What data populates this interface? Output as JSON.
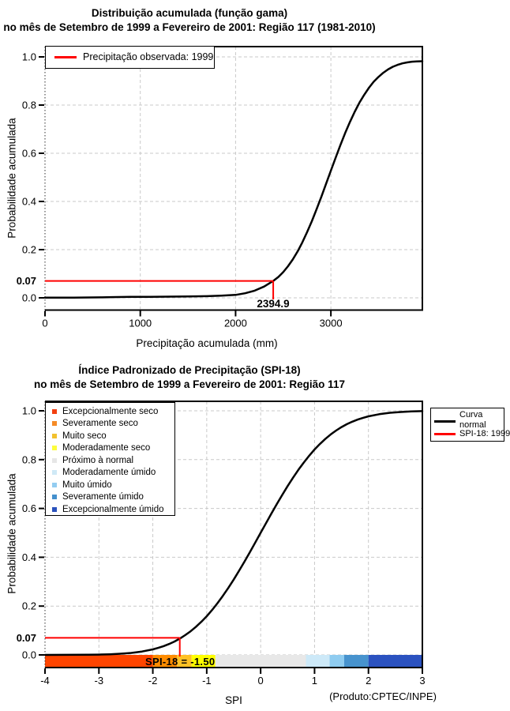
{
  "chart_data": [
    {
      "type": "line",
      "title": "Distribuição acumulada (função gama)",
      "subtitle": "no mês de Setembro de 1999 a Fevereiro de 2001: Região 117 (1981-2010)",
      "xlabel": "Precipitação acumulada (mm)",
      "ylabel": "Probabilidade acumulada",
      "xlim": [
        0,
        3960
      ],
      "ylim": [
        -0.051,
        1.043
      ],
      "xticks": [
        0,
        1000,
        2000,
        3000
      ],
      "xtick_labels": [
        "0",
        "1000",
        "2000",
        "3000"
      ],
      "yticks": [
        0.0,
        0.2,
        0.4,
        0.6,
        0.8,
        1.0
      ],
      "ytick_labels": [
        "0.0",
        "0.2",
        "0.4",
        "0.6",
        "0.8",
        "1.0"
      ],
      "highlight_ytick": {
        "value": 0.07,
        "label": "0.07",
        "color": "#4d4d4d"
      },
      "grid": true,
      "legend": {
        "position": "top-left",
        "items": [
          {
            "label": "Precipitação observada: 1999",
            "color": "#ff0000"
          }
        ]
      },
      "annotation": {
        "x": 2394.9,
        "y": 0.07,
        "label": "2394.9",
        "color": "#ff0000"
      },
      "series": [
        {
          "name": "gamma-cdf",
          "color": "#000000",
          "points": [
            [
              0,
              0.001
            ],
            [
              300,
              0.001
            ],
            [
              600,
              0.002
            ],
            [
              700,
              0.003
            ],
            [
              900,
              0.004
            ],
            [
              1100,
              0.004
            ],
            [
              1300,
              0.005
            ],
            [
              1500,
              0.006
            ],
            [
              1700,
              0.007
            ],
            [
              1850,
              0.009
            ],
            [
              2000,
              0.012
            ],
            [
              2100,
              0.019
            ],
            [
              2200,
              0.03
            ],
            [
              2300,
              0.047
            ],
            [
              2394.9,
              0.07
            ],
            [
              2450,
              0.087
            ],
            [
              2500,
              0.107
            ],
            [
              2550,
              0.131
            ],
            [
              2600,
              0.159
            ],
            [
              2650,
              0.192
            ],
            [
              2700,
              0.23
            ],
            [
              2750,
              0.272
            ],
            [
              2800,
              0.318
            ],
            [
              2850,
              0.368
            ],
            [
              2900,
              0.42
            ],
            [
              2950,
              0.474
            ],
            [
              3000,
              0.528
            ],
            [
              3050,
              0.582
            ],
            [
              3100,
              0.634
            ],
            [
              3150,
              0.684
            ],
            [
              3200,
              0.73
            ],
            [
              3250,
              0.772
            ],
            [
              3300,
              0.81
            ],
            [
              3350,
              0.843
            ],
            [
              3400,
              0.872
            ],
            [
              3450,
              0.897
            ],
            [
              3500,
              0.917
            ],
            [
              3550,
              0.934
            ],
            [
              3600,
              0.948
            ],
            [
              3650,
              0.959
            ],
            [
              3700,
              0.967
            ],
            [
              3750,
              0.973
            ],
            [
              3800,
              0.977
            ],
            [
              3850,
              0.98
            ],
            [
              3900,
              0.981
            ],
            [
              3960,
              0.982
            ]
          ]
        }
      ]
    },
    {
      "type": "line",
      "title": "Índice Padronizado de Precipitação (SPI-18)",
      "subtitle": "no mês de Setembro de 1999 a Fevereiro de 2001: Região 117",
      "xlabel": "SPI",
      "ylabel": "Probabilidade acumulada",
      "xlim": [
        -4,
        3
      ],
      "ylim": [
        -0.051,
        1.043
      ],
      "xticks": [
        -4,
        -3,
        -2,
        -1,
        0,
        1,
        2,
        3
      ],
      "xtick_labels": [
        "-4",
        "-3",
        "-2",
        "-1",
        "0",
        "1",
        "2",
        "3"
      ],
      "yticks": [
        0.0,
        0.2,
        0.4,
        0.6,
        0.8,
        1.0
      ],
      "ytick_labels": [
        "0.0",
        "0.2",
        "0.4",
        "0.6",
        "0.8",
        "1.0"
      ],
      "highlight_ytick": {
        "value": 0.07,
        "label": "0.07",
        "color": "#4d4d4d"
      },
      "grid": true,
      "categories": [
        {
          "label": "Excepcionalmente seco",
          "color": "#f23f10"
        },
        {
          "label": "Severamente seco",
          "color": "#f58b26"
        },
        {
          "label": "Muito seco",
          "color": "#f2c12e"
        },
        {
          "label": "Moderadamente seco",
          "color": "#fdfd3c"
        },
        {
          "label": "Próximo à normal",
          "color": "#e6e6e6"
        },
        {
          "label": "Moderadamente úmido",
          "color": "#cfe9f6"
        },
        {
          "label": "Muito úmido",
          "color": "#93cdf1"
        },
        {
          "label": "Severamente úmido",
          "color": "#4590cd"
        },
        {
          "label": "Excepcionalmente úmido",
          "color": "#2a52bd"
        }
      ],
      "colorbar": [
        {
          "from": -4,
          "to": -2,
          "color": "#ff4500"
        },
        {
          "from": -2,
          "to": -1.55,
          "color": "#ff8c00"
        },
        {
          "from": -1.55,
          "to": -1.28,
          "color": "#ffc125"
        },
        {
          "from": -1.28,
          "to": -0.84,
          "color": "#ffff00"
        },
        {
          "from": -0.84,
          "to": 0.84,
          "color": "#e8e8e8"
        },
        {
          "from": 0.84,
          "to": 1.28,
          "color": "#cde9f8"
        },
        {
          "from": 1.28,
          "to": 1.55,
          "color": "#8fccf0"
        },
        {
          "from": 1.55,
          "to": 2,
          "color": "#4793ce"
        },
        {
          "from": 2,
          "to": 3,
          "color": "#2b52c0"
        }
      ],
      "line_legend": {
        "position": "top-right",
        "items": [
          {
            "label_line1": "Curva",
            "label_line2": "normal",
            "color": "#000000"
          },
          {
            "label": "SPI-18: 1999",
            "color": "#ff0000"
          }
        ]
      },
      "annotation": {
        "x": -1.5,
        "y": 0.07,
        "label": "SPI-18 = -1.50",
        "color": "#ff0000"
      },
      "credit": "(Produto:CPTEC/INPE)",
      "series": [
        {
          "name": "normal-cdf",
          "color": "#000000",
          "points": [
            [
              -4,
              0.0001
            ],
            [
              -3.6,
              0.0003
            ],
            [
              -3.2,
              0.0007
            ],
            [
              -3,
              0.0013
            ],
            [
              -2.8,
              0.0026
            ],
            [
              -2.6,
              0.0047
            ],
            [
              -2.4,
              0.0082
            ],
            [
              -2.2,
              0.0139
            ],
            [
              -2,
              0.0228
            ],
            [
              -1.9,
              0.0287
            ],
            [
              -1.8,
              0.0359
            ],
            [
              -1.7,
              0.0446
            ],
            [
              -1.6,
              0.0548
            ],
            [
              -1.5,
              0.0668
            ],
            [
              -1.4,
              0.0808
            ],
            [
              -1.3,
              0.0968
            ],
            [
              -1.2,
              0.1151
            ],
            [
              -1.1,
              0.1357
            ],
            [
              -1,
              0.1587
            ],
            [
              -0.9,
              0.1841
            ],
            [
              -0.8,
              0.2119
            ],
            [
              -0.7,
              0.242
            ],
            [
              -0.6,
              0.2743
            ],
            [
              -0.5,
              0.3085
            ],
            [
              -0.4,
              0.3446
            ],
            [
              -0.3,
              0.3821
            ],
            [
              -0.2,
              0.4207
            ],
            [
              -0.1,
              0.4602
            ],
            [
              0,
              0.5
            ],
            [
              0.1,
              0.5398
            ],
            [
              0.2,
              0.5793
            ],
            [
              0.3,
              0.6179
            ],
            [
              0.4,
              0.6554
            ],
            [
              0.5,
              0.6915
            ],
            [
              0.6,
              0.7257
            ],
            [
              0.7,
              0.758
            ],
            [
              0.8,
              0.7881
            ],
            [
              0.9,
              0.8159
            ],
            [
              1,
              0.8413
            ],
            [
              1.1,
              0.8643
            ],
            [
              1.2,
              0.8849
            ],
            [
              1.3,
              0.9032
            ],
            [
              1.4,
              0.9192
            ],
            [
              1.5,
              0.9332
            ],
            [
              1.6,
              0.9452
            ],
            [
              1.7,
              0.9554
            ],
            [
              1.8,
              0.9641
            ],
            [
              1.9,
              0.9713
            ],
            [
              2,
              0.9772
            ],
            [
              2.2,
              0.9861
            ],
            [
              2.4,
              0.9918
            ],
            [
              2.6,
              0.9953
            ],
            [
              2.8,
              0.9974
            ],
            [
              3,
              0.9987
            ]
          ]
        }
      ]
    }
  ]
}
